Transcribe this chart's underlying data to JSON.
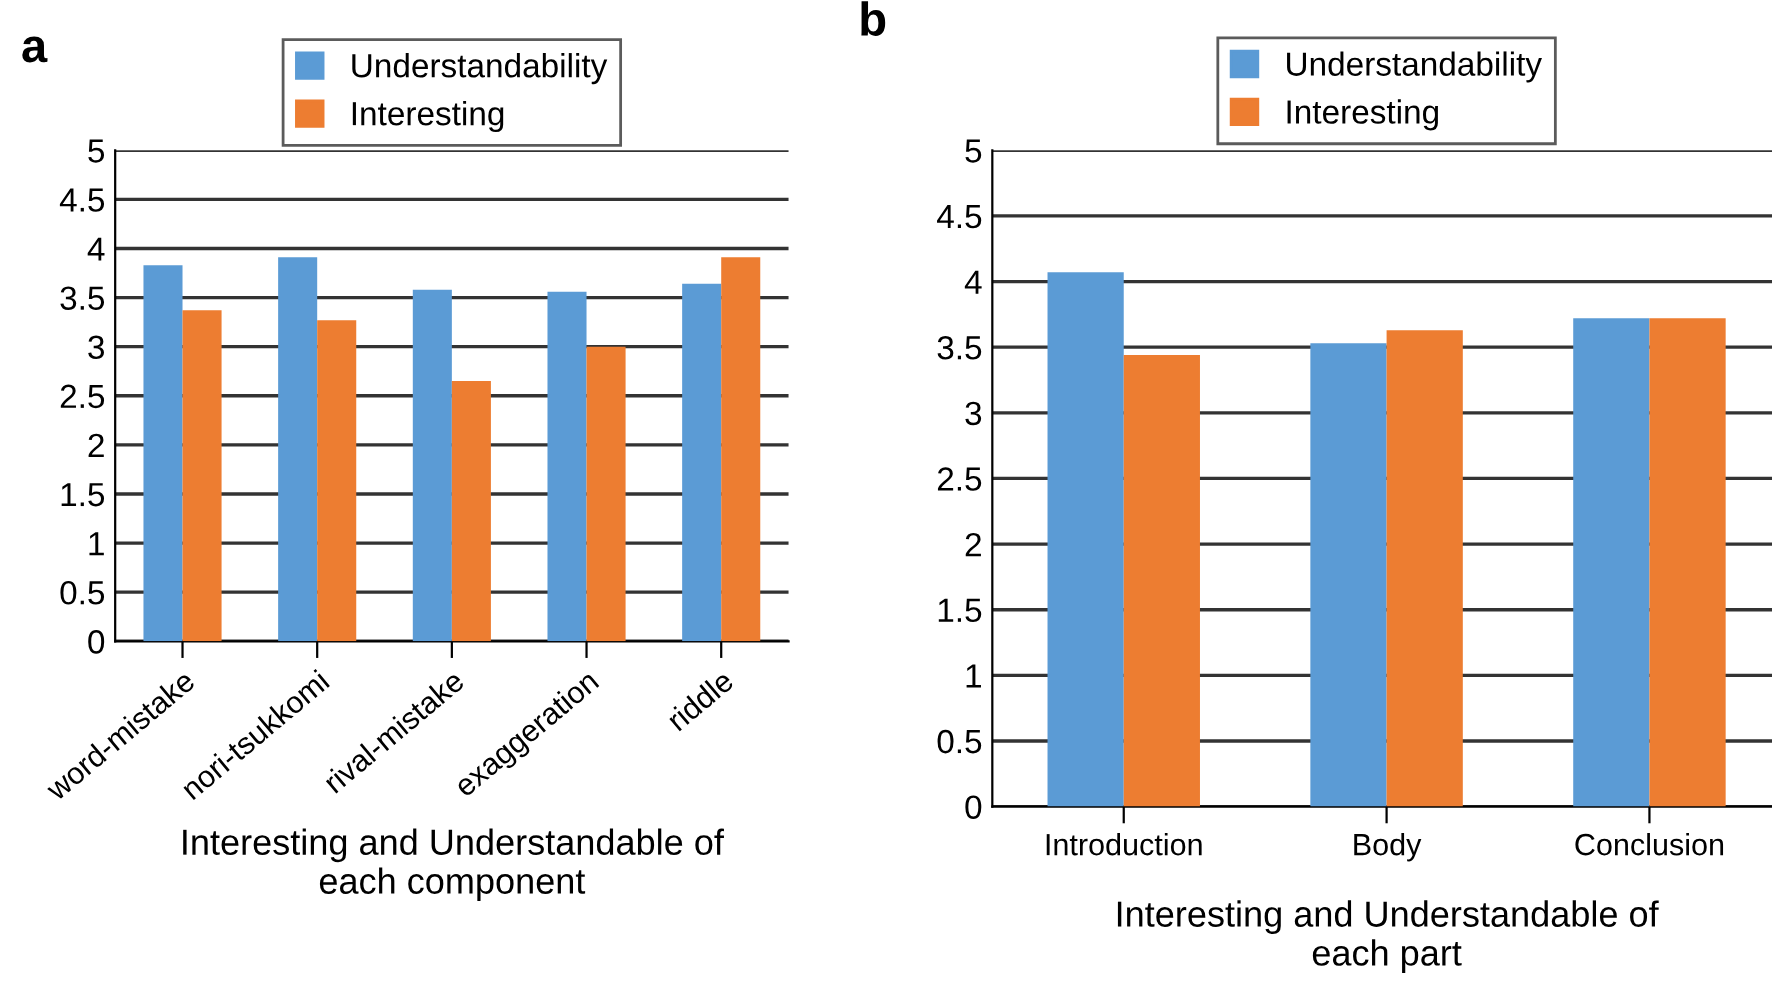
{
  "chart_data": [
    {
      "type": "bar",
      "title": "a",
      "xlabel": "Interesting and Understandable of\neach component",
      "categories": [
        "word-mistake",
        "nori-tsukkomi",
        "rival-mistake",
        "exaggeration",
        "riddle"
      ],
      "series": [
        {
          "name": "Understandability",
          "color": "#5b9bd5",
          "values": [
            3.83,
            3.91,
            3.58,
            3.56,
            3.64
          ]
        },
        {
          "name": "Interesting",
          "color": "#ed7d31",
          "values": [
            3.37,
            3.27,
            2.65,
            3.0,
            3.91
          ]
        }
      ],
      "ylim": [
        0,
        5
      ],
      "yticks": [
        0,
        0.5,
        1,
        1.5,
        2,
        2.5,
        3,
        3.5,
        4,
        4.5,
        5
      ],
      "grid": "y",
      "legend": "top"
    },
    {
      "type": "bar",
      "title": "b",
      "xlabel": "Interesting and Understandable of\neach part",
      "categories": [
        "Introduction",
        "Body",
        "Conclusion"
      ],
      "series": [
        {
          "name": "Understandability",
          "color": "#5b9bd5",
          "values": [
            4.07,
            3.53,
            3.72
          ]
        },
        {
          "name": "Interesting",
          "color": "#ed7d31",
          "values": [
            3.44,
            3.63,
            3.72
          ]
        }
      ],
      "ylim": [
        0,
        5
      ],
      "yticks": [
        0,
        0.5,
        1,
        1.5,
        2,
        2.5,
        3,
        3.5,
        4,
        4.5,
        5
      ],
      "grid": "y",
      "legend": "top"
    }
  ]
}
